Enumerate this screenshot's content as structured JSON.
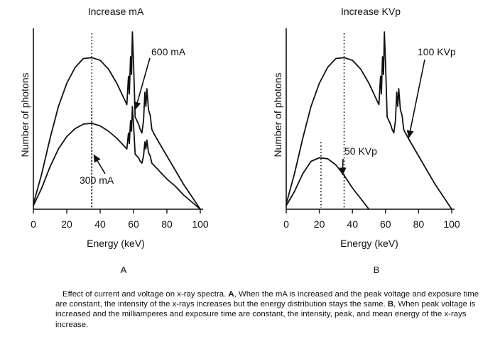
{
  "chart_data": [
    {
      "type": "line",
      "title": "Increase mA",
      "panel_label": "A",
      "xlabel": "Energy (keV)",
      "ylabel": "Number of photons",
      "xlim": [
        0,
        100
      ],
      "ylim": [
        0,
        100
      ],
      "x_ticks": [
        0,
        20,
        40,
        60,
        80,
        100
      ],
      "grid": false,
      "series": [
        {
          "name": "600 mA",
          "x": [
            0,
            5,
            10,
            15,
            20,
            25,
            30,
            35,
            40,
            45,
            50,
            55,
            56,
            57,
            57.5,
            58.2,
            58.8,
            59.3,
            60,
            61,
            62,
            63,
            64,
            65,
            66,
            66.8,
            67.4,
            68,
            69,
            70,
            71,
            72,
            75,
            80,
            85,
            90,
            95,
            100
          ],
          "y": [
            3,
            20,
            40,
            58,
            71,
            80,
            85,
            85.5,
            84,
            79,
            71,
            61,
            59,
            75,
            65,
            86,
            76,
            100,
            83,
            52,
            50,
            48,
            45,
            43,
            50,
            66,
            58,
            68,
            56,
            53,
            45,
            43,
            38,
            30,
            22,
            14,
            7,
            0
          ],
          "mean_energy": 35
        },
        {
          "name": "300 mA",
          "x": [
            0,
            5,
            10,
            15,
            20,
            25,
            30,
            35,
            40,
            45,
            50,
            55,
            56,
            57,
            57.5,
            58.2,
            58.8,
            59.3,
            60,
            61,
            62,
            63,
            64,
            65,
            66,
            66.8,
            67.4,
            68,
            69,
            70,
            71,
            72,
            75,
            80,
            85,
            90,
            95,
            100
          ],
          "y": [
            2,
            12,
            24,
            34,
            41,
            45.5,
            48,
            48.5,
            47,
            44,
            40,
            35,
            34,
            43,
            37,
            50,
            44,
            58,
            48,
            31,
            30,
            29,
            27,
            26,
            30,
            38,
            34,
            39,
            32,
            30,
            26,
            25,
            22,
            17,
            13,
            8,
            4,
            0
          ],
          "mean_energy": 35
        }
      ],
      "annotations": [
        {
          "text": "600 mA",
          "target_series": "600 mA",
          "points_to": {
            "x": 61,
            "y": 56
          }
        },
        {
          "text": "300 mA",
          "target_series": "300 mA",
          "points_to": {
            "x": 36,
            "y": 31
          }
        }
      ]
    },
    {
      "type": "line",
      "title": "Increase KVp",
      "panel_label": "B",
      "xlabel": "Energy (keV)",
      "ylabel": "Number of photons",
      "xlim": [
        0,
        100
      ],
      "ylim": [
        0,
        100
      ],
      "x_ticks": [
        0,
        20,
        40,
        60,
        80,
        100
      ],
      "grid": false,
      "series": [
        {
          "name": "100 KVp",
          "x": [
            0,
            5,
            10,
            15,
            20,
            25,
            30,
            35,
            40,
            45,
            50,
            55,
            56,
            57,
            57.5,
            58.2,
            58.8,
            59.3,
            60,
            61,
            62,
            63,
            64,
            65,
            66,
            66.8,
            67.4,
            68,
            69,
            70,
            71,
            72,
            75,
            80,
            85,
            90,
            95,
            100
          ],
          "y": [
            3,
            20,
            40,
            58,
            71,
            80,
            85,
            85.5,
            84,
            79,
            71,
            61,
            59,
            75,
            65,
            86,
            76,
            100,
            83,
            52,
            50,
            48,
            45,
            43,
            50,
            66,
            58,
            68,
            56,
            53,
            45,
            43,
            38,
            30,
            22,
            14,
            7,
            0
          ],
          "mean_energy": 35
        },
        {
          "name": "50 KVp",
          "x": [
            0,
            5,
            10,
            15,
            20,
            25,
            30,
            35,
            40,
            45,
            50
          ],
          "y": [
            2,
            10,
            20,
            27,
            29,
            28.5,
            25,
            19,
            12,
            6,
            0
          ],
          "mean_energy": 21
        }
      ],
      "annotations": [
        {
          "text": "100 KVp",
          "target_series": "100 KVp",
          "points_to": {
            "x": 74,
            "y": 40
          }
        },
        {
          "text": "50 KVp",
          "target_series": "50 KVp",
          "points_to": {
            "x": 34,
            "y": 19
          }
        }
      ]
    }
  ],
  "caption": {
    "lines": [
      "Effect of current and voltage on x-ray spectra. ",
      "A",
      ", When the mA is increased and the peak voltage and exposure time are constant, the intensity of the x-rays increases but the energy distribution stays the same. ",
      "B",
      ", When peak voltage is increased and the milliamperes and exposure time are constant, the intensity, peak, and mean energy of the x-rays increase."
    ]
  }
}
